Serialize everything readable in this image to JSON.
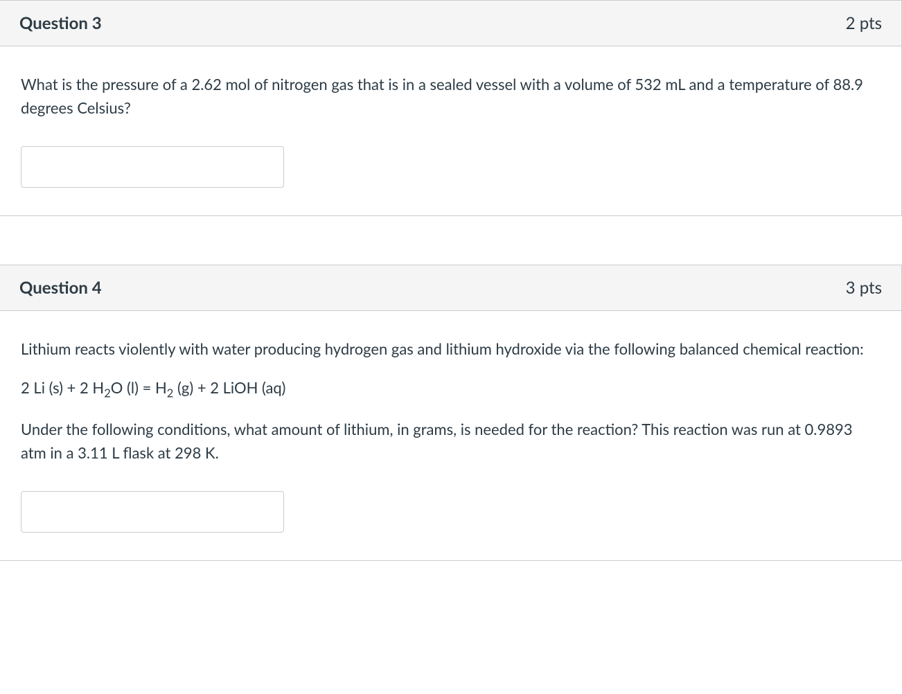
{
  "questions": [
    {
      "title": "Question 3",
      "points": "2 pts",
      "body_text": "What is the pressure of a 2.62 mol of nitrogen gas that is in a sealed vessel with a volume of 532 mL and a temperature of 88.9 degrees Celsius?",
      "answer_value": ""
    },
    {
      "title": "Question 4",
      "points": "3 pts",
      "intro_text": "Lithium reacts violently with water producing hydrogen gas and lithium hydroxide via the following balanced chemical reaction:",
      "equation_parts": {
        "prefix": "2 Li (s) + 2 H",
        "sub1": "2",
        "mid1": "O (l) = H",
        "sub2": "2",
        "suffix": " (g) + 2 LiOH (aq)"
      },
      "followup_text": "Under the following conditions, what amount of lithium, in grams,  is needed for the reaction? This reaction was run at 0.9893 atm in a 3.11 L flask at 298 K.",
      "answer_value": ""
    }
  ],
  "styling": {
    "header_bg": "#f5f5f5",
    "border_color": "#c7cdd1",
    "text_color": "#2d3b45",
    "title_fontsize": 24,
    "body_fontsize": 22,
    "input_width": 380,
    "input_height": 60
  }
}
